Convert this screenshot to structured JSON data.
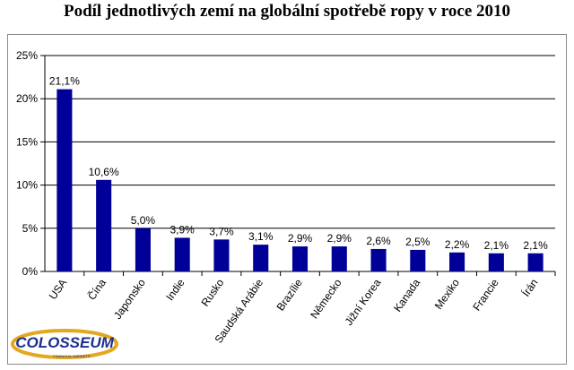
{
  "title": "Podíl jednotlivých zemí na globální spotřebě ropy v roce 2010",
  "logo": {
    "name": "COLOSSEUM",
    "tagline": "FINANCIAL MARKETS"
  },
  "colors": {
    "bar": "#000099",
    "axis": "#000000",
    "grid": "#000000",
    "logo_ring": "#e2a81f",
    "logo_text": "#1a2f8f"
  },
  "chart_data": {
    "type": "bar",
    "title": "Podíl jednotlivých zemí na globální spotřebě ropy v roce 2010",
    "categories": [
      "USA",
      "Čína",
      "Japonsko",
      "Indie",
      "Rusko",
      "Saudská Arábie",
      "Brazílie",
      "Německo",
      "Jižní Korea",
      "Kanada",
      "Mexiko",
      "Francie",
      "Írán"
    ],
    "values": [
      21.1,
      10.6,
      5.0,
      3.9,
      3.7,
      3.1,
      2.9,
      2.9,
      2.6,
      2.5,
      2.2,
      2.1,
      2.1
    ],
    "data_labels": [
      "21,1%",
      "10,6%",
      "5,0%",
      "3,9%",
      "3,7%",
      "3,1%",
      "2,9%",
      "2,9%",
      "2,6%",
      "2,5%",
      "2,2%",
      "2,1%",
      "2,1%"
    ],
    "y_ticks": [
      0,
      5,
      10,
      15,
      20,
      25
    ],
    "y_tick_labels": [
      "0%",
      "5%",
      "10%",
      "15%",
      "20%",
      "25%"
    ],
    "ylim": [
      0,
      25
    ],
    "xlabel": "",
    "ylabel": "",
    "grid": "horizontal",
    "legend": "none"
  }
}
